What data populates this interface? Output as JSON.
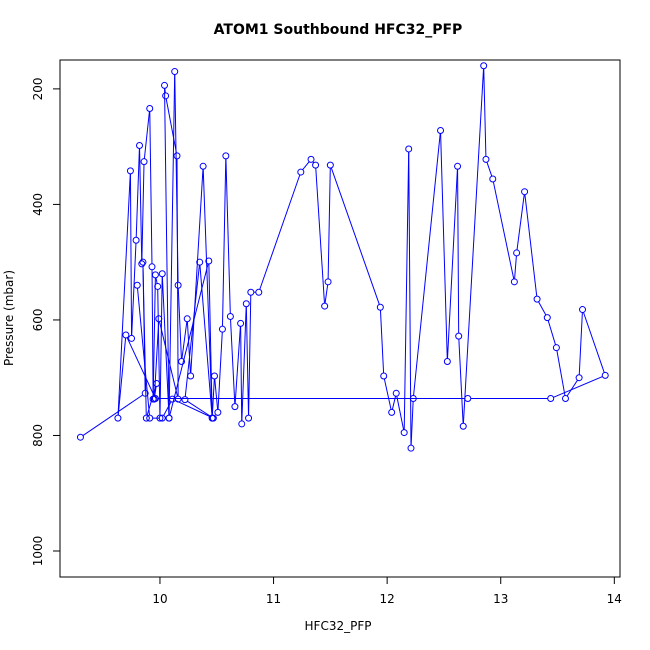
{
  "chart_data": {
    "type": "line",
    "title": "ATOM1 Southbound HFC32_PFP",
    "xlabel": "HFC32_PFP",
    "ylabel": "Pressure (mbar)",
    "xlim": [
      9.12,
      14.05
    ],
    "ylim": [
      1045,
      150
    ],
    "y_reversed": true,
    "x_ticks": [
      10,
      11,
      12,
      13,
      14
    ],
    "y_ticks": [
      200,
      400,
      600,
      800,
      1000
    ],
    "grid": false,
    "legend": "none",
    "color": "#0000ff",
    "series": [
      {
        "x": [
          9.3,
          9.87,
          9.85,
          9.88,
          9.97,
          9.95,
          9.99,
          10.16,
          10.15,
          10.05,
          10.04,
          10.08,
          10.13,
          10.16,
          10.19,
          10.24,
          10.27,
          10.38,
          10.46,
          10.48,
          10.51,
          10.55,
          10.58,
          10.62,
          10.66,
          10.71,
          10.72,
          10.76,
          10.78,
          10.8,
          10.87,
          11.24,
          11.33,
          11.37,
          11.45,
          11.48,
          11.5,
          11.94,
          11.97,
          12.04,
          12.08,
          12.15,
          12.19,
          12.21,
          12.23,
          12.47,
          12.53,
          12.62,
          12.63,
          12.67,
          12.85,
          12.87,
          12.93,
          13.12,
          13.14,
          13.21,
          13.32,
          13.41,
          13.49,
          13.57,
          13.69,
          13.72,
          13.92,
          13.44,
          12.71,
          9.96,
          9.7,
          9.63,
          9.74,
          9.75,
          9.79,
          9.82,
          9.84,
          9.86,
          9.91,
          9.93,
          9.94,
          9.96,
          9.98,
          10.0,
          10.02,
          10.08,
          10.43,
          10.46,
          10.35,
          10.22,
          10.47,
          10.11,
          10.02,
          9.91,
          9.8
        ],
        "y": [
          803,
          727,
          500,
          770,
          710,
          737,
          598,
          737,
          316,
          212,
          194,
          770,
          170,
          540,
          672,
          598,
          697,
          334,
          770,
          697,
          760,
          616,
          316,
          594,
          750,
          606,
          780,
          572,
          770,
          552,
          552,
          344,
          322,
          332,
          576,
          534,
          332,
          578,
          697,
          760,
          727,
          795,
          304,
          822,
          736,
          272,
          672,
          334,
          628,
          784,
          160,
          322,
          356,
          534,
          484,
          378,
          564,
          596,
          648,
          736,
          700,
          582,
          696,
          736,
          736,
          736,
          626,
          770,
          342,
          632,
          462,
          298,
          503,
          326,
          234,
          508,
          737,
          522,
          542,
          770,
          520,
          770,
          498,
          770,
          500,
          738,
          770,
          737,
          770,
          770,
          540
        ]
      }
    ]
  }
}
